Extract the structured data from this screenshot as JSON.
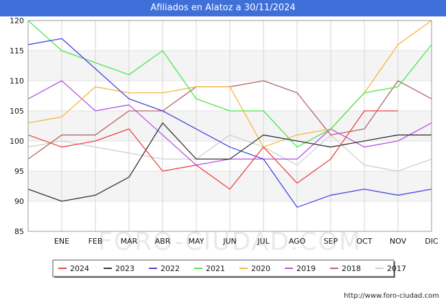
{
  "title": "Afiliados en Alatoz a 30/11/2024",
  "source": "http://www.foro-ciudad.com",
  "watermark": "FORO-CIUDAD.COM",
  "chart_data": {
    "type": "line",
    "title": "Afiliados en Alatoz a 30/11/2024",
    "xlabel": "",
    "ylabel": "",
    "ylim": [
      85,
      120
    ],
    "yticks": [
      85,
      90,
      95,
      100,
      105,
      110,
      115,
      120
    ],
    "categories": [
      "",
      "ENE",
      "FEB",
      "MAR",
      "ABR",
      "MAY",
      "JUN",
      "JUL",
      "AGO",
      "SEP",
      "OCT",
      "NOV",
      "DIC"
    ],
    "grid": true,
    "legend_position": "bottom",
    "series": [
      {
        "name": "2024",
        "color": "#e8413e",
        "values": [
          101,
          99,
          100,
          102,
          95,
          96,
          92,
          99,
          93,
          97,
          105,
          105,
          null
        ]
      },
      {
        "name": "2023",
        "color": "#333333",
        "values": [
          92,
          90,
          91,
          94,
          103,
          97,
          97,
          101,
          100,
          99,
          100,
          101,
          101
        ]
      },
      {
        "name": "2022",
        "color": "#4343e0",
        "values": [
          116,
          117,
          112,
          107,
          105,
          102,
          99,
          97,
          89,
          91,
          92,
          91,
          92
        ]
      },
      {
        "name": "2021",
        "color": "#47e847",
        "values": [
          120,
          115,
          113,
          111,
          115,
          107,
          105,
          105,
          99,
          102,
          108,
          109,
          116
        ]
      },
      {
        "name": "2020",
        "color": "#f5b53e",
        "values": [
          103,
          104,
          109,
          108,
          108,
          109,
          109,
          99,
          101,
          102,
          108,
          116,
          120
        ]
      },
      {
        "name": "2019",
        "color": "#b453e3",
        "values": [
          107,
          110,
          105,
          106,
          101,
          96,
          97,
          97,
          97,
          102,
          99,
          100,
          103
        ]
      },
      {
        "name": "2018",
        "color": "#b36363",
        "values": [
          97,
          101,
          101,
          105,
          105,
          109,
          109,
          110,
          108,
          101,
          102,
          110,
          107
        ]
      },
      {
        "name": "2017",
        "color": "#cfcfcf",
        "values": [
          99,
          100,
          99,
          98,
          97,
          97,
          101,
          99,
          96,
          101,
          96,
          95,
          97
        ]
      }
    ]
  }
}
